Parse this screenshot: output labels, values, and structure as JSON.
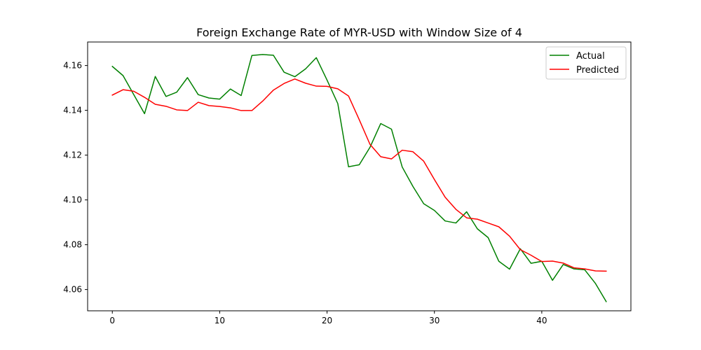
{
  "chart_data": {
    "type": "line",
    "title": "Foreign Exchange Rate of MYR-USD with Window Size of 4",
    "xlabel": "",
    "ylabel": "",
    "xlim": [
      -2.3,
      48.3
    ],
    "ylim": [
      4.0505,
      4.1705
    ],
    "xticks": [
      0,
      10,
      20,
      30,
      40
    ],
    "yticks": [
      4.06,
      4.08,
      4.1,
      4.12,
      4.14,
      4.16
    ],
    "ytick_labels": [
      "4.06",
      "4.08",
      "4.10",
      "4.12",
      "4.14",
      "4.16"
    ],
    "grid": false,
    "legend_position": "top-right",
    "x": [
      0,
      1,
      2,
      3,
      4,
      5,
      6,
      7,
      8,
      9,
      10,
      11,
      12,
      13,
      14,
      15,
      16,
      17,
      18,
      19,
      20,
      21,
      22,
      23,
      24,
      25,
      26,
      27,
      28,
      29,
      30,
      31,
      32,
      33,
      34,
      35,
      36,
      37,
      38,
      39,
      40,
      41,
      42,
      43,
      44,
      45,
      46
    ],
    "series": [
      {
        "name": "Actual",
        "color": "#008000",
        "values": [
          4.1596,
          4.1555,
          4.147,
          4.1385,
          4.1551,
          4.1462,
          4.1481,
          4.1546,
          4.147,
          4.1455,
          4.145,
          4.1495,
          4.1466,
          4.1645,
          4.1649,
          4.1646,
          4.157,
          4.155,
          4.1585,
          4.1635,
          4.1535,
          4.143,
          4.1148,
          4.1157,
          4.1235,
          4.1341,
          4.1316,
          4.1147,
          4.106,
          4.0983,
          4.0953,
          4.0906,
          4.0897,
          4.0947,
          4.0871,
          4.0832,
          4.0726,
          4.0691,
          4.0782,
          4.0717,
          4.0726,
          4.0641,
          4.0712,
          4.0692,
          4.0688,
          4.0627,
          4.0546
        ]
      },
      {
        "name": "Predicted",
        "color": "#ff0000",
        "values": [
          4.1468,
          4.1492,
          4.1485,
          4.1458,
          4.1427,
          4.1418,
          4.1402,
          4.1399,
          4.1436,
          4.1421,
          4.1417,
          4.1411,
          4.1399,
          4.1399,
          4.1441,
          4.149,
          4.152,
          4.154,
          4.1521,
          4.1508,
          4.1507,
          4.1496,
          4.1464,
          4.1358,
          4.1248,
          4.1193,
          4.1183,
          4.1222,
          4.1215,
          4.1173,
          4.1091,
          4.1012,
          4.0958,
          4.092,
          4.0914,
          4.0897,
          4.088,
          4.0838,
          4.0778,
          4.0753,
          4.0725,
          4.0727,
          4.0718,
          4.0697,
          4.0692,
          4.0683,
          4.0682
        ]
      }
    ]
  }
}
